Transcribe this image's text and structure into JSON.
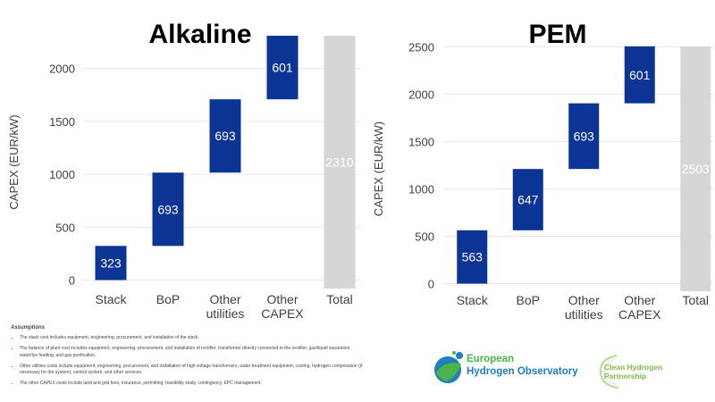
{
  "chart_data": [
    {
      "type": "waterfall",
      "title": "Alkaline",
      "ylabel": "CAPEX (EUR/kW)",
      "categories": [
        "Stack",
        "BoP",
        "Other utilities",
        "Other CAPEX",
        "Total"
      ],
      "category_lines": [
        [
          "Stack"
        ],
        [
          "BoP"
        ],
        [
          "Other",
          "utilities"
        ],
        [
          "Other",
          "CAPEX"
        ],
        [
          "Total"
        ]
      ],
      "values": [
        323,
        693,
        693,
        601,
        2310
      ],
      "labels": [
        "323",
        "693",
        "693",
        "601",
        "2310"
      ],
      "yticks": [
        0,
        500,
        1000,
        1500,
        2000
      ],
      "ylim": [
        -80,
        2310
      ],
      "grid": true
    },
    {
      "type": "waterfall",
      "title": "PEM",
      "ylabel": "CAPEX (EUR/kW)",
      "categories": [
        "Stack",
        "BoP",
        "Other utilities",
        "Other CAPEX",
        "Total"
      ],
      "category_lines": [
        [
          "Stack"
        ],
        [
          "BoP"
        ],
        [
          "Other",
          "utilities"
        ],
        [
          "Other",
          "CAPEX"
        ],
        [
          "Total"
        ]
      ],
      "values": [
        563,
        647,
        693,
        601,
        2503
      ],
      "labels": [
        "563",
        "647",
        "693",
        "601",
        "2503"
      ],
      "yticks": [
        0,
        500,
        1000,
        1500,
        2000,
        2500
      ],
      "ylim": [
        -80,
        2503
      ],
      "grid": true
    }
  ],
  "colors": {
    "bar": "#0b3494",
    "total": "#d6d6d6",
    "grid": "#e6e6e6",
    "bar_label": "#ffffff"
  },
  "assumptions": {
    "title": "Assumptions",
    "items": [
      "The stack cost includes equipment, engineering, procurement, and installation of the stack.",
      "The balance of plant cost includes equipment, engineering, procurement, and installation of rectifier, transformer directly connected to the rectifier, gas/liquid separation, water/lye feeding, and gas purification.",
      "Other utilities costs include equipment, engineering, procurement, and installation of high voltage transformers, water treatment equipment, cooling, hydrogen compression (if necessary for the system), control system, and other services.",
      "The other CAPEX costs include land and grid fees, insurance, permitting, feasibility study, contingency, EPC management."
    ]
  },
  "logos": {
    "eho_line1": "European",
    "eho_line2": "Hydrogen Observatory",
    "chp_line1": "Clean Hydrogen",
    "chp_line2": "Partnership"
  }
}
